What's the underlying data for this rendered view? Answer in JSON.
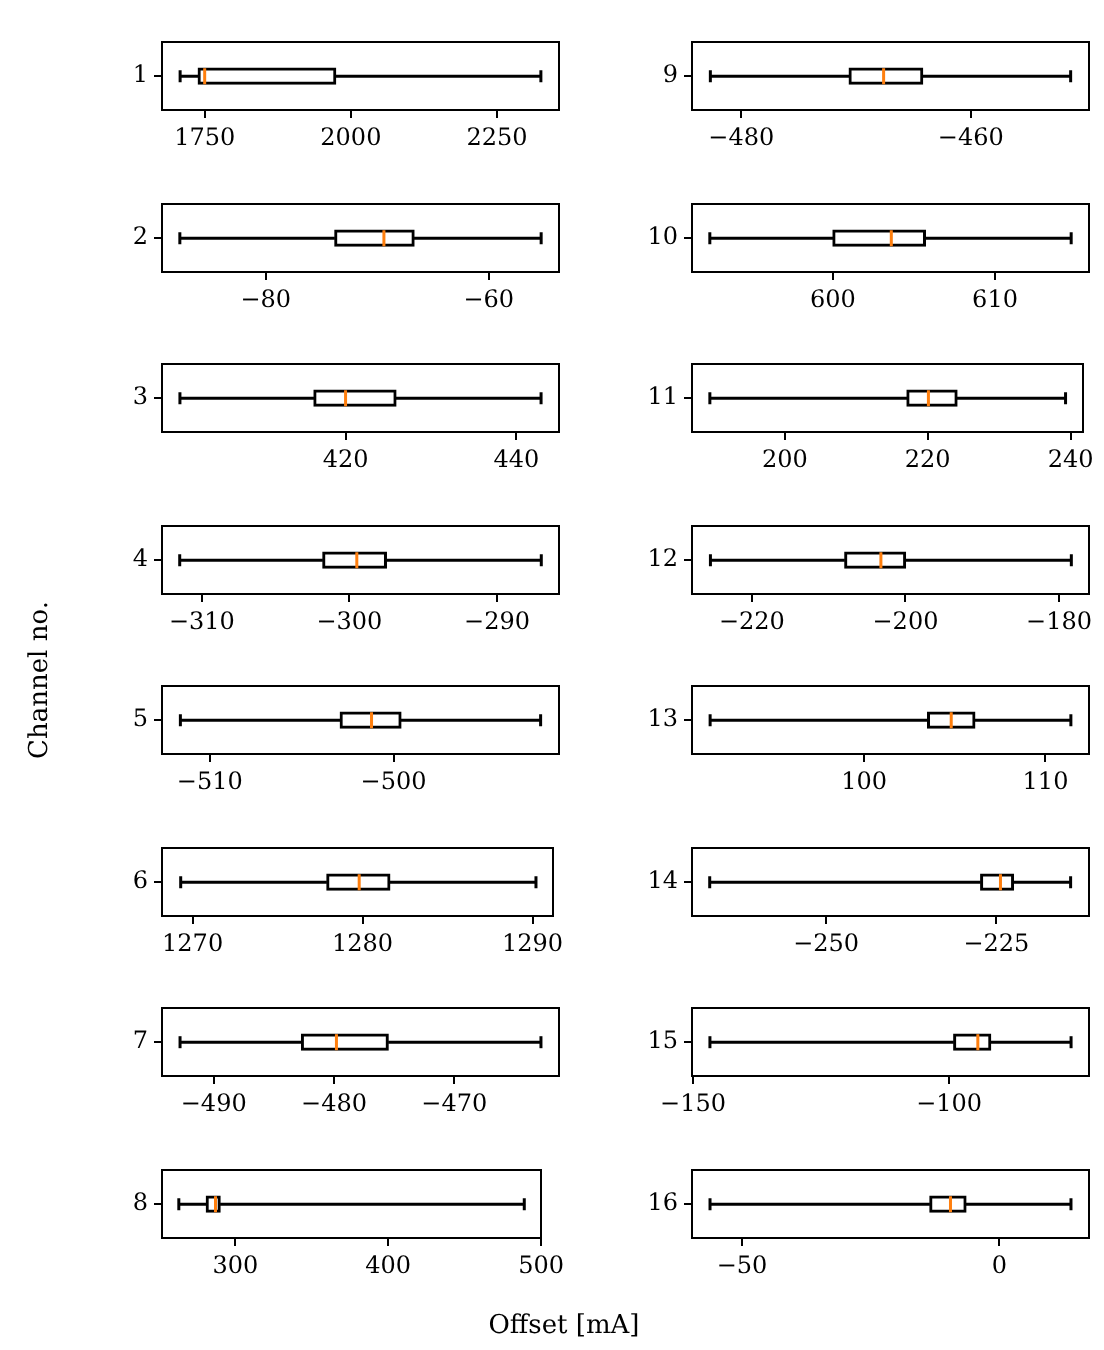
{
  "chart_data": [
    {
      "type": "box",
      "orientation": "horizontal",
      "categories": [
        "1"
      ],
      "boxes": [
        {
          "low": 1708,
          "q1": 1739,
          "median": 1750,
          "q3": 1974,
          "high": 2325
        }
      ],
      "xlim": [
        1677,
        2356
      ],
      "xticks": [
        1750,
        2000,
        2250
      ]
    },
    {
      "type": "box",
      "orientation": "horizontal",
      "categories": [
        "2"
      ],
      "boxes": [
        {
          "low": -87.7,
          "q1": -73.8,
          "median": -69.4,
          "q3": -66.7,
          "high": -55.3
        }
      ],
      "xlim": [
        -89.3,
        -53.7
      ],
      "xticks": [
        -80,
        -60
      ]
    },
    {
      "type": "box",
      "orientation": "horizontal",
      "categories": [
        "3"
      ],
      "boxes": [
        {
          "low": 400.6,
          "q1": 416.3,
          "median": 420,
          "q3": 425.9,
          "high": 442.9
        }
      ],
      "xlim": [
        398.5,
        445
      ],
      "xticks": [
        420,
        440
      ]
    },
    {
      "type": "box",
      "orientation": "horizontal",
      "categories": [
        "4"
      ],
      "boxes": [
        {
          "low": -311.5,
          "q1": -301.8,
          "median": -299.5,
          "q3": -297.5,
          "high": -287
        }
      ],
      "xlim": [
        -312.7,
        -285.8
      ],
      "xticks": [
        -310,
        -300,
        -290
      ]
    },
    {
      "type": "box",
      "orientation": "horizontal",
      "ylabel": "Channel no.",
      "categories": [
        "5"
      ],
      "boxes": [
        {
          "low": -511.6,
          "q1": -502.9,
          "median": -501.2,
          "q3": -499.6,
          "high": -492
        }
      ],
      "xlim": [
        -512.6,
        -491
      ],
      "xticks": [
        -510,
        -500
      ]
    },
    {
      "type": "box",
      "orientation": "horizontal",
      "categories": [
        "6"
      ],
      "boxes": [
        {
          "low": 1269.3,
          "q1": 1277.9,
          "median": 1279.8,
          "q3": 1281.6,
          "high": 1290.2
        }
      ],
      "xlim": [
        1268.2,
        1291.2
      ],
      "xticks": [
        1270,
        1280,
        1290
      ]
    },
    {
      "type": "box",
      "orientation": "horizontal",
      "categories": [
        "7"
      ],
      "boxes": [
        {
          "low": -492.8,
          "q1": -482.7,
          "median": -479.8,
          "q3": -475.5,
          "high": -462.8
        }
      ],
      "xlim": [
        -494.3,
        -461.3
      ],
      "xticks": [
        -490,
        -480,
        -470
      ]
    },
    {
      "type": "box",
      "orientation": "horizontal",
      "xlabel": "Offset [mA]",
      "categories": [
        "8"
      ],
      "boxes": [
        {
          "low": 263,
          "q1": 281,
          "median": 287,
          "q3": 290,
          "high": 489
        }
      ],
      "xlim": [
        252,
        500
      ],
      "xticks": [
        300,
        400,
        500
      ]
    },
    {
      "type": "box",
      "orientation": "horizontal",
      "categories": [
        "9"
      ],
      "boxes": [
        {
          "low": -482.7,
          "q1": -470.6,
          "median": -467.6,
          "q3": -464.2,
          "high": -451.3
        }
      ],
      "xlim": [
        -484.3,
        -449.7
      ],
      "xticks": [
        -480,
        -460
      ]
    },
    {
      "type": "box",
      "orientation": "horizontal",
      "categories": [
        "10"
      ],
      "boxes": [
        {
          "low": 592.4,
          "q1": 600,
          "median": 603.6,
          "q3": 605.7,
          "high": 614.7
        }
      ],
      "xlim": [
        591.3,
        615.8
      ],
      "xticks": [
        600,
        610
      ]
    },
    {
      "type": "box",
      "orientation": "horizontal",
      "categories": [
        "11"
      ],
      "boxes": [
        {
          "low": 189.5,
          "q1": 217.1,
          "median": 220.1,
          "q3": 224.1,
          "high": 239.3
        }
      ],
      "xlim": [
        187,
        241.8
      ],
      "xticks": [
        200,
        220,
        240
      ]
    },
    {
      "type": "box",
      "orientation": "horizontal",
      "categories": [
        "12"
      ],
      "boxes": [
        {
          "low": -225.4,
          "q1": -207.9,
          "median": -203.2,
          "q3": -200,
          "high": -178.4
        }
      ],
      "xlim": [
        -227.8,
        -176.1
      ],
      "xticks": [
        -220,
        -200,
        -180
      ]
    },
    {
      "type": "box",
      "orientation": "horizontal",
      "categories": [
        "13"
      ],
      "boxes": [
        {
          "low": 91.5,
          "q1": 103.5,
          "median": 104.8,
          "q3": 106.1,
          "high": 111.4
        }
      ],
      "xlim": [
        90.5,
        112.4
      ],
      "xticks": [
        100,
        110
      ]
    },
    {
      "type": "box",
      "orientation": "horizontal",
      "categories": [
        "14"
      ],
      "boxes": [
        {
          "low": -267.1,
          "q1": -227.3,
          "median": -224.4,
          "q3": -222.5,
          "high": -214.1
        }
      ],
      "xlim": [
        -269.7,
        -211.4
      ],
      "xticks": [
        -250,
        -225
      ]
    },
    {
      "type": "box",
      "orientation": "horizontal",
      "categories": [
        "15"
      ],
      "boxes": [
        {
          "low": -146.7,
          "q1": -99.1,
          "median": -94.4,
          "q3": -91.9,
          "high": -76.2
        }
      ],
      "xlim": [
        -150.2,
        -72.7
      ],
      "xticks": [
        -150,
        -100
      ]
    },
    {
      "type": "box",
      "orientation": "horizontal",
      "categories": [
        "16"
      ],
      "boxes": [
        {
          "low": -56.2,
          "q1": -13.5,
          "median": -9.5,
          "q3": -6.5,
          "high": 13.9
        }
      ],
      "xlim": [
        -59.7,
        17.4
      ],
      "xticks": [
        -50,
        0
      ]
    }
  ]
}
